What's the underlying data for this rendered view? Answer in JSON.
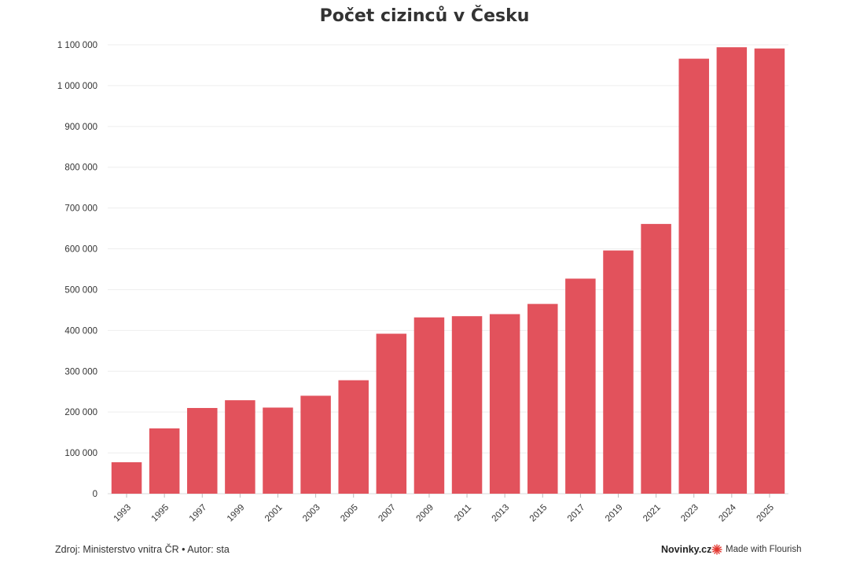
{
  "chart_data": {
    "type": "bar",
    "title": "Počet cizinců v Česku",
    "xlabel": "",
    "ylabel": "",
    "categories": [
      "1993",
      "1995",
      "1997",
      "1999",
      "2001",
      "2003",
      "2005",
      "2007",
      "2009",
      "2011",
      "2013",
      "2015",
      "2017",
      "2019",
      "2021",
      "2023",
      "2024",
      "2025"
    ],
    "values": [
      77000,
      160000,
      210000,
      229000,
      211000,
      240000,
      278000,
      392000,
      432000,
      435000,
      440000,
      465000,
      527000,
      596000,
      661000,
      1066000,
      1094000,
      1091000
    ],
    "ylim": [
      0,
      1100000
    ],
    "yticks": [
      0,
      100000,
      200000,
      300000,
      400000,
      500000,
      600000,
      700000,
      800000,
      900000,
      1000000,
      1100000
    ],
    "ytick_labels": [
      "0",
      "100 000",
      "200 000",
      "300 000",
      "400 000",
      "500 000",
      "600 000",
      "700 000",
      "800 000",
      "900 000",
      "1 000 000",
      "1 100 000"
    ],
    "grid": true,
    "bar_color": "#e2525c"
  },
  "footer": {
    "source": "Zdroj: Ministerstvo vnitra ČR • Autor: sta",
    "brand": "Novinky.cz",
    "flourish": "Made with Flourish"
  },
  "colors": {
    "flourish_icon": "#e2352e"
  }
}
